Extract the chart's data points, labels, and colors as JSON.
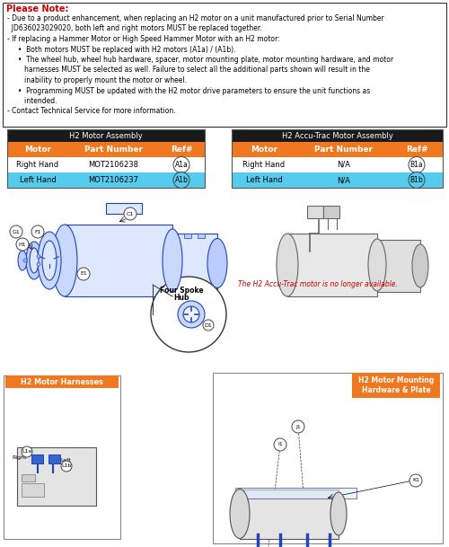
{
  "bg_color": "#ffffff",
  "note_border_color": "#333333",
  "note_title_color": "#cc0000",
  "note_title": "Please Note:",
  "note_lines": [
    [
      "- Due to a product enhancement, when replacing an H2 motor on a unit manufactured prior to Serial Number",
      false
    ],
    [
      "  JD636023029020, both left and right motors ",
      false
    ],
    [
      "- If replacing a Hammer Motor or High Speed Hammer Motor with an H2 motor:",
      false
    ],
    [
      "• Both motors ",
      false
    ],
    [
      "• The wheel hub, wheel hub hardware, spacer, motor mounting plate, motor mounting hardware, and motor",
      false
    ],
    [
      "  harnesses ",
      false
    ],
    [
      "  inability to properly mount the motor or wheel.",
      false
    ],
    [
      "• Programming ",
      false
    ],
    [
      "  intended.",
      false
    ],
    [
      "- Contact Technical Service for more information.",
      false
    ]
  ],
  "table1_title": "H2 Motor Assembly",
  "table1_header": [
    "Motor",
    "Part Number",
    "Ref#"
  ],
  "table1_rows": [
    [
      "Right Hand",
      "MOT2106238",
      "A1a"
    ],
    [
      "Left Hand",
      "MOT2106237",
      "A1b"
    ]
  ],
  "table2_title": "H2 Accu-Trac Motor Assembly",
  "table2_header": [
    "Motor",
    "Part Number",
    "Ref#"
  ],
  "table2_rows": [
    [
      "Right Hand",
      "N/A",
      "B1a"
    ],
    [
      "Left Hand",
      "N/A",
      "B1b"
    ]
  ],
  "table_dark_bg": "#1a1a1a",
  "table_orange_bg": "#f07820",
  "table_blue_bg": "#55ccee",
  "table_white_bg": "#ffffff",
  "orange_color": "#f07820",
  "red_color": "#cc0000",
  "blue_draw_color": "#2244bb",
  "accu_trac_note": "The H2 Accu-Trac motor is no longer available.",
  "harness_label": "H2 Motor Harnesses",
  "mounting_label": "H2 Motor Mounting\nHardware & Plate",
  "note_lines_text": [
    "- Due to a product enhancement, when replacing an H2 motor on a unit manufactured prior to Serial Number",
    "  JD636023029020, both left and right motors MUST be replaced together.",
    "- If replacing a Hammer Motor or High Speed Hammer Motor with an H2 motor:",
    "     •  Both motors MUST be replaced with H2 motors (A1a) / (A1b).",
    "     •  The wheel hub, wheel hub hardware, spacer, motor mounting plate, motor mounting hardware, and motor",
    "        harnesses MUST be selected as well. Failure to select all the additional parts shown will result in the",
    "        inability to properly mount the motor or wheel.",
    "     •  Programming MUST be updated with the H2 motor drive parameters to ensure the unit functions as",
    "        intended.",
    "- Contact Technical Service for more information."
  ]
}
